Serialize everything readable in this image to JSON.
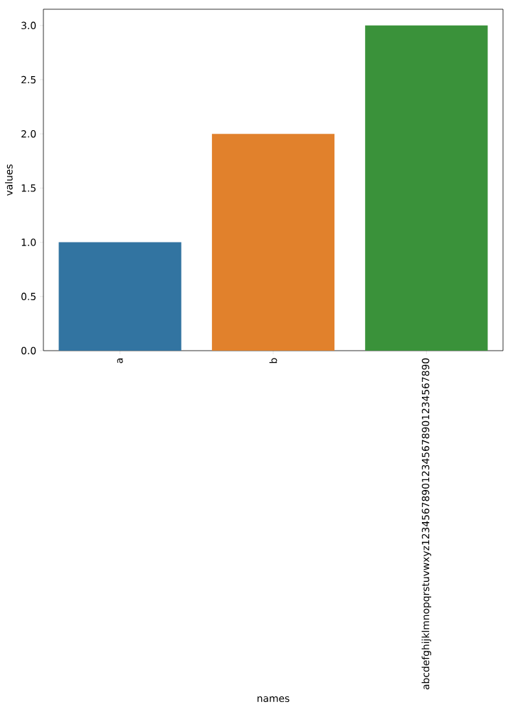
{
  "chart_data": {
    "type": "bar",
    "xlabel": "names",
    "ylabel": "values",
    "categories": [
      "a",
      "b",
      "abcdefghijklmnopqrstuvwxyz123456789012345678901234567890"
    ],
    "values": [
      1,
      2,
      3
    ],
    "colors": [
      "#3274a1",
      "#e1812c",
      "#3a923a"
    ],
    "ylim": [
      0,
      3.15
    ],
    "yticks": [
      {
        "value": 0,
        "label": "0.0"
      },
      {
        "value": 0.5,
        "label": "0.5"
      },
      {
        "value": 1,
        "label": "1.0"
      },
      {
        "value": 1.5,
        "label": "1.5"
      },
      {
        "value": 2,
        "label": "2.0"
      },
      {
        "value": 2.5,
        "label": "2.5"
      },
      {
        "value": 3,
        "label": "3.0"
      }
    ],
    "grid": false
  }
}
